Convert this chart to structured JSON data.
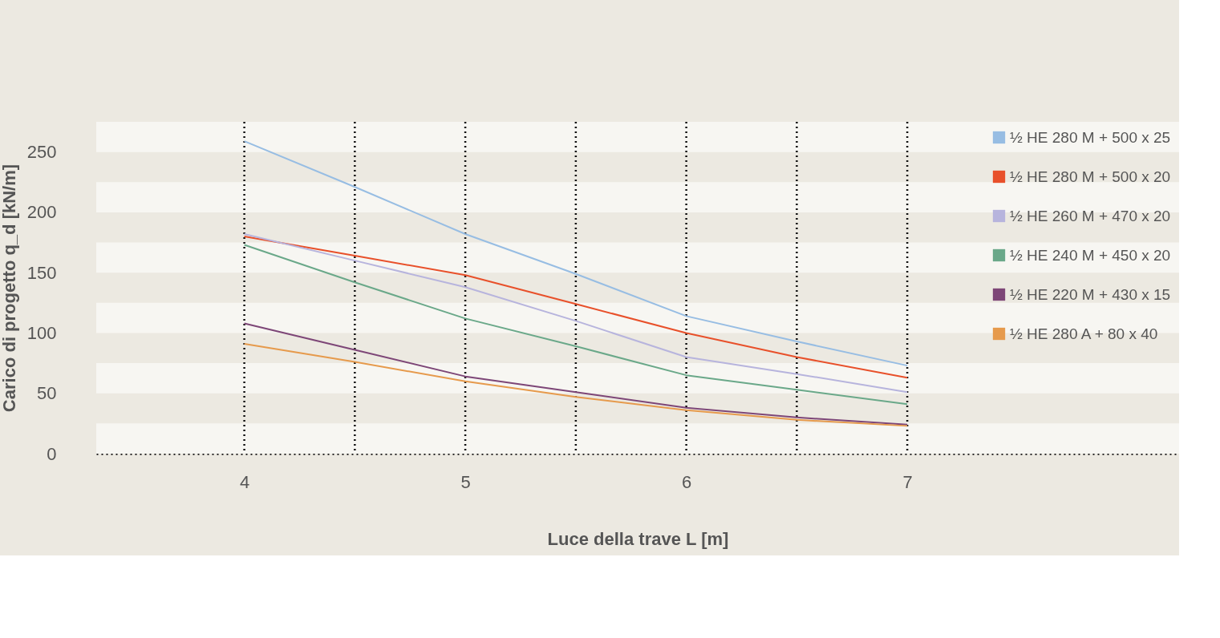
{
  "chart_data": {
    "type": "line",
    "xlabel": "Luce della trave L [m]",
    "ylabel": "Carico di progetto q_d [kN/m]",
    "x": [
      4,
      4.5,
      5,
      5.5,
      6,
      6.5,
      7
    ],
    "series": [
      {
        "name": "½ HE 280 M + 500 x 25",
        "color": "#97bde3",
        "values": [
          259,
          221,
          182,
          149,
          114,
          93,
          73
        ]
      },
      {
        "name": "½ HE 280 M + 500 x 20",
        "color": "#e8502a",
        "values": [
          180,
          164,
          148,
          124,
          100,
          80,
          63
        ]
      },
      {
        "name": "½ HE 260 M + 470 x 20",
        "color": "#b7b4dd",
        "values": [
          182,
          160,
          138,
          110,
          80,
          66,
          51
        ]
      },
      {
        "name": "½ HE 240 M + 450 x 20",
        "color": "#6aa889",
        "values": [
          173,
          142,
          112,
          89,
          65,
          53,
          41
        ]
      },
      {
        "name": "½ HE 220 M + 430 x 15",
        "color": "#7d4677",
        "values": [
          108,
          86,
          64,
          51,
          38,
          30,
          24
        ]
      },
      {
        "name": "½ HE 280 A + 80 x 40",
        "color": "#e69a4c",
        "values": [
          91,
          76,
          60,
          47,
          36,
          28,
          23
        ]
      }
    ],
    "xlim": [
      3.33,
      8.23
    ],
    "ylim": [
      0,
      275
    ],
    "xticks": [
      4,
      5,
      6,
      7
    ],
    "yticks": [
      0,
      50,
      100,
      150,
      200,
      250
    ],
    "grid": false,
    "legend": "top right",
    "marker": "none",
    "line_style": "solid",
    "ref_lines": [
      {
        "axis": "x",
        "value": 4,
        "color": "#111111",
        "line_style": "dotted"
      },
      {
        "axis": "x",
        "value": 4.5,
        "color": "#111111",
        "line_style": "dotted"
      },
      {
        "axis": "x",
        "value": 5,
        "color": "#111111",
        "line_style": "dotted"
      },
      {
        "axis": "x",
        "value": 5.5,
        "color": "#111111",
        "line_style": "dotted"
      },
      {
        "axis": "x",
        "value": 6,
        "color": "#111111",
        "line_style": "dotted"
      },
      {
        "axis": "x",
        "value": 6.5,
        "color": "#111111",
        "line_style": "dotted"
      },
      {
        "axis": "x",
        "value": 7,
        "color": "#111111",
        "line_style": "dotted"
      }
    ],
    "bands": [
      {
        "axis": "y",
        "from": 0,
        "to": 25,
        "color": "#f7f6f2"
      },
      {
        "axis": "y",
        "from": 50,
        "to": 75,
        "color": "#f7f6f2"
      },
      {
        "axis": "y",
        "from": 100,
        "to": 125,
        "color": "#f7f6f2"
      },
      {
        "axis": "y",
        "from": 150,
        "to": 175,
        "color": "#f7f6f2"
      },
      {
        "axis": "y",
        "from": 200,
        "to": 225,
        "color": "#f7f6f2"
      },
      {
        "axis": "y",
        "from": 250,
        "to": 275,
        "color": "#f7f6f2"
      }
    ]
  }
}
